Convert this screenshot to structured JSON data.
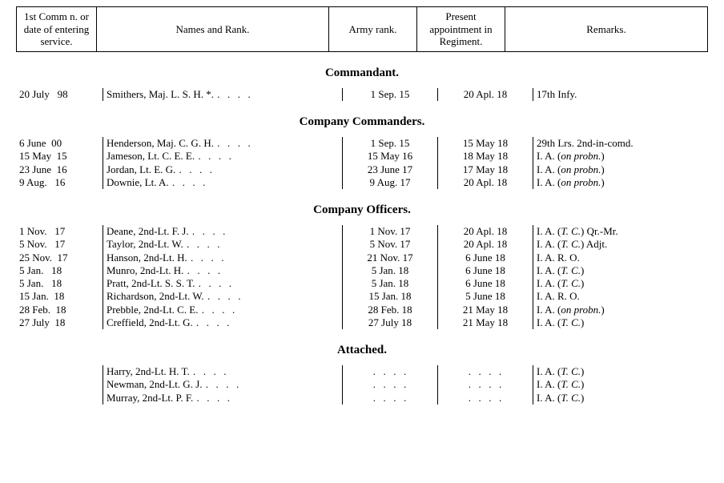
{
  "header": {
    "col_date": "1st Comm n. or date of entering service.",
    "col_name": "Names and Rank.",
    "col_army": "Army rank.",
    "col_appt": "Present appointment in Regiment.",
    "col_rem": "Remarks."
  },
  "sections": {
    "commandant": {
      "title": "Commandant.",
      "rows": [
        {
          "date": "20 July   98",
          "name": "Smithers, Maj. L. S. H. *.",
          "army": "1 Sep. 15",
          "appt": "20 Apl. 18",
          "rem": "17th Infy."
        }
      ]
    },
    "company_commanders": {
      "title": "Company Commanders.",
      "rows": [
        {
          "date": "6 June  00",
          "name": "Henderson, Maj. C. G. H.",
          "army": "1 Sep. 15",
          "appt": "15 May 18",
          "rem": "29th Lrs. 2nd-in-comd."
        },
        {
          "date": "15 May  15",
          "name": "Jameson, Lt. C. E. E.",
          "army": "15 May 16",
          "appt": "18 May 18",
          "rem_html": "I. A. (<em>on probn.</em>)"
        },
        {
          "date": "23 June  16",
          "name": "Jordan, Lt. E. G.",
          "army": "23 June 17",
          "appt": "17 May 18",
          "rem_html": "I. A. (<em>on probn.</em>)"
        },
        {
          "date": "9 Aug.   16",
          "name": "Downie, Lt. A.",
          "army": "9 Aug. 17",
          "appt": "20 Apl. 18",
          "rem_html": "I. A. (<em>on probn.</em>)"
        }
      ]
    },
    "company_officers": {
      "title": "Company Officers.",
      "rows": [
        {
          "date": "1 Nov.   17",
          "name": "Deane, 2nd-Lt. F. J.",
          "army": "1 Nov. 17",
          "appt": "20 Apl. 18",
          "rem_html": "I. A. (<em>T. C.</em>) Qr.-Mr."
        },
        {
          "date": "5 Nov.   17",
          "name": "Taylor, 2nd-Lt. W.",
          "army": "5 Nov. 17",
          "appt": "20 Apl. 18",
          "rem_html": "I. A. (<em>T. C.</em>) Adjt."
        },
        {
          "date": "25 Nov.  17",
          "name": "Hanson, 2nd-Lt. H.",
          "army": "21 Nov. 17",
          "appt": "6 June 18",
          "rem": "I. A. R. O."
        },
        {
          "date": "5 Jan.   18",
          "name": "Munro, 2nd-Lt. H.",
          "army": "5 Jan. 18",
          "appt": "6 June 18",
          "rem_html": "I. A. (<em>T. C.</em>)"
        },
        {
          "date": "5 Jan.   18",
          "name": "Pratt, 2nd-Lt. S. S. T.",
          "army": "5 Jan. 18",
          "appt": "6 June 18",
          "rem_html": "I. A. (<em>T. C.</em>)"
        },
        {
          "date": "15 Jan.  18",
          "name": "Richardson, 2nd-Lt. W.",
          "army": "15 Jan. 18",
          "appt": "5 June 18",
          "rem": "I. A. R. O."
        },
        {
          "date": "28 Feb.  18",
          "name": "Prebble, 2nd-Lt. C. E.",
          "army": "28 Feb. 18",
          "appt": "21 May 18",
          "rem_html": "I. A. (<em>on probn.</em>)"
        },
        {
          "date": "27 July  18",
          "name": "Creffield, 2nd-Lt. G.",
          "army": "27 July 18",
          "appt": "21 May 18",
          "rem_html": "I. A. (<em>T. C.</em>)"
        }
      ]
    },
    "attached": {
      "title": "Attached.",
      "rows": [
        {
          "date": "",
          "name": "Harry, 2nd-Lt. H. T.",
          "army": "",
          "appt": "",
          "rem_html": "I. A. (<em>T. C.</em>)"
        },
        {
          "date": "",
          "name": "Newman, 2nd-Lt. G. J.",
          "army": "",
          "appt": "",
          "rem_html": "I. A. (<em>T. C.</em>)"
        },
        {
          "date": "",
          "name": "Murray, 2nd-Lt. P. F.",
          "army": "",
          "appt": "",
          "rem_html": "I. A. (<em>T. C.</em>)"
        }
      ]
    }
  },
  "colors": {
    "text": "#000000",
    "background": "#ffffff",
    "border": "#000000"
  }
}
